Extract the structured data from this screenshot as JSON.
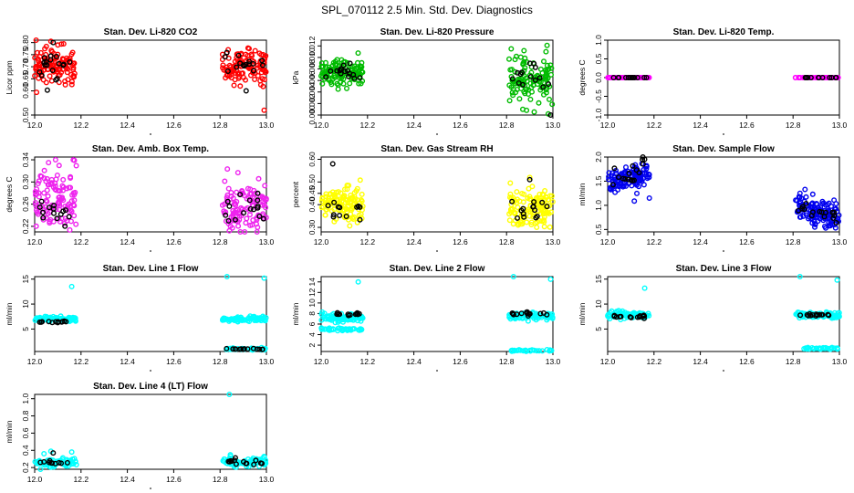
{
  "figure": {
    "title": "SPL_070112  2.5 Min. Std. Dev. Diagnostics"
  },
  "colors": {
    "overlay": "#000000",
    "co2": "#ff0000",
    "pressure": "#00bb00",
    "temp": "#ff00ff",
    "box_temp": "#ee22ee",
    "rh": "#ffff00",
    "flow": "#0000ee",
    "line_flow": "#00ffff"
  },
  "chart_data": [
    {
      "id": "co2",
      "type": "scatter",
      "title": "Stan. Dev. Li-820 CO2",
      "xlabel": "",
      "ylabel": "Licor ppm",
      "xlim": [
        12.0,
        13.0
      ],
      "ylim": [
        0.5,
        0.81
      ],
      "yticks": [
        0.5,
        0.6,
        0.65,
        0.7,
        0.75,
        0.8
      ],
      "ytick_labels": [
        "0.50",
        "0.60",
        "0.65",
        "0.70",
        "0.75",
        "0.80"
      ],
      "xticks": [
        12.0,
        12.2,
        12.4,
        12.6,
        12.8,
        13.0
      ],
      "series": [
        {
          "name": "main",
          "color_key": "co2",
          "segments": [
            {
              "x": [
                12.0,
                12.18
              ],
              "mu": 0.7,
              "sd": 0.04,
              "n": 110
            },
            {
              "x": [
                12.81,
                13.0
              ],
              "mu": 0.7,
              "sd": 0.04,
              "n": 110
            }
          ],
          "extra": [
            [
              12.1,
              0.79
            ],
            [
              12.07,
              0.805
            ],
            [
              12.99,
              0.52
            ]
          ]
        },
        {
          "name": "overlay",
          "color_key": "overlay",
          "segments": [
            {
              "x": [
                12.02,
                12.17
              ],
              "mu": 0.7,
              "sd": 0.035,
              "n": 18
            },
            {
              "x": [
                12.82,
                13.0
              ],
              "mu": 0.7,
              "sd": 0.035,
              "n": 16
            }
          ],
          "extra": [
            [
              12.08,
              0.8
            ]
          ]
        }
      ]
    },
    {
      "id": "pressure",
      "type": "scatter",
      "title": "Stan. Dev. Li-820 Pressure",
      "xlabel": "",
      "ylabel": "kPa",
      "xlim": [
        12.0,
        13.0
      ],
      "ylim": [
        0.0,
        0.013
      ],
      "yticks": [
        0.0,
        0.002,
        0.004,
        0.006,
        0.008,
        0.01,
        0.012
      ],
      "ytick_labels": [
        "0.000",
        "0.002",
        "0.004",
        "0.006",
        "0.008",
        "0.010",
        "0.012"
      ],
      "xticks": [
        12.0,
        12.2,
        12.4,
        12.6,
        12.8,
        13.0
      ],
      "series": [
        {
          "name": "main",
          "color_key": "pressure",
          "segments": [
            {
              "x": [
                12.0,
                12.18
              ],
              "mu": 0.0075,
              "sd": 0.0012,
              "n": 120
            },
            {
              "x": [
                12.81,
                13.0
              ],
              "mu": 0.006,
              "sd": 0.0022,
              "n": 110
            }
          ],
          "extra": [
            [
              12.82,
              0.0115
            ],
            [
              12.98,
              0.0002
            ],
            [
              12.87,
              0.001
            ],
            [
              12.97,
              0.011
            ]
          ]
        },
        {
          "name": "overlay",
          "color_key": "overlay",
          "segments": [
            {
              "x": [
                12.02,
                12.17
              ],
              "mu": 0.0072,
              "sd": 0.0008,
              "n": 16
            },
            {
              "x": [
                12.82,
                12.99
              ],
              "mu": 0.0062,
              "sd": 0.0012,
              "n": 14
            }
          ],
          "extra": [
            [
              12.99,
              0.0
            ]
          ]
        }
      ]
    },
    {
      "id": "li_temp",
      "type": "scatter",
      "title": "Stan. Dev. Li-820 Temp.",
      "xlabel": "",
      "ylabel": "degrees C",
      "xlim": [
        12.0,
        13.0
      ],
      "ylim": [
        -1.0,
        1.0
      ],
      "yticks": [
        -1.0,
        -0.5,
        0.0,
        0.5,
        1.0
      ],
      "ytick_labels": [
        "-1.0",
        "-0.5",
        "0.0",
        "0.5",
        "1.0"
      ],
      "xticks": [
        12.0,
        12.2,
        12.4,
        12.6,
        12.8,
        13.0
      ],
      "series": [
        {
          "name": "main",
          "color_key": "temp",
          "segments": [
            {
              "x": [
                12.0,
                12.18
              ],
              "mu": 0.0,
              "sd": 0.0,
              "n": 60
            },
            {
              "x": [
                12.81,
                13.0
              ],
              "mu": 0.0,
              "sd": 0.0,
              "n": 60
            }
          ],
          "extra": []
        },
        {
          "name": "overlay",
          "color_key": "overlay",
          "segments": [
            {
              "x": [
                12.02,
                12.17
              ],
              "mu": 0.0,
              "sd": 0.0,
              "n": 12
            },
            {
              "x": [
                12.82,
                12.99
              ],
              "mu": 0.0,
              "sd": 0.0,
              "n": 12
            }
          ],
          "extra": []
        }
      ]
    },
    {
      "id": "box_temp",
      "type": "scatter",
      "title": "Stan. Dev. Amb. Box Temp.",
      "xlabel": "",
      "ylabel": "degrees C",
      "xlim": [
        12.0,
        13.0
      ],
      "ylim": [
        0.21,
        0.345
      ],
      "yticks": [
        0.22,
        0.26,
        0.3,
        0.34
      ],
      "ytick_labels": [
        "0.22",
        "0.26",
        "0.30",
        "0.34"
      ],
      "xticks": [
        12.0,
        12.2,
        12.4,
        12.6,
        12.8,
        13.0
      ],
      "series": [
        {
          "name": "main",
          "color_key": "box_temp",
          "segments": [
            {
              "x": [
                12.0,
                12.18
              ],
              "mu": 0.27,
              "sd": 0.027,
              "n": 110
            },
            {
              "x": [
                12.81,
                13.0
              ],
              "mu": 0.255,
              "sd": 0.025,
              "n": 110
            }
          ],
          "extra": [
            [
              12.09,
              0.34
            ],
            [
              12.06,
              0.335
            ],
            [
              12.84,
              0.212
            ]
          ]
        },
        {
          "name": "overlay",
          "color_key": "overlay",
          "segments": [
            {
              "x": [
                12.02,
                12.17
              ],
              "mu": 0.245,
              "sd": 0.012,
              "n": 14
            },
            {
              "x": [
                12.82,
                12.99
              ],
              "mu": 0.25,
              "sd": 0.018,
              "n": 16
            }
          ],
          "extra": []
        }
      ]
    },
    {
      "id": "rh",
      "type": "scatter",
      "title": "Stan. Dev. Gas Stream RH",
      "xlabel": "",
      "ylabel": "percent",
      "xlim": [
        12.0,
        13.0
      ],
      "ylim": [
        0.28,
        0.61
      ],
      "yticks": [
        0.3,
        0.4,
        0.45,
        0.5,
        0.6
      ],
      "ytick_labels": [
        "0.30",
        "0.40",
        "0.45",
        "0.50",
        "0.60"
      ],
      "xticks": [
        12.0,
        12.2,
        12.4,
        12.6,
        12.8,
        13.0
      ],
      "series": [
        {
          "name": "main",
          "color_key": "rh",
          "segments": [
            {
              "x": [
                12.0,
                12.18
              ],
              "mu": 0.4,
              "sd": 0.035,
              "n": 120
            },
            {
              "x": [
                12.81,
                13.0
              ],
              "mu": 0.38,
              "sd": 0.04,
              "n": 120
            }
          ],
          "extra": [
            [
              12.85,
              0.31
            ],
            [
              12.93,
              0.3
            ],
            [
              12.9,
              0.52
            ]
          ]
        },
        {
          "name": "overlay",
          "color_key": "overlay",
          "segments": [
            {
              "x": [
                12.02,
                12.17
              ],
              "mu": 0.38,
              "sd": 0.02,
              "n": 12
            },
            {
              "x": [
                12.82,
                12.99
              ],
              "mu": 0.4,
              "sd": 0.04,
              "n": 14
            }
          ],
          "extra": [
            [
              12.05,
              0.58
            ],
            [
              12.9,
              0.51
            ]
          ]
        }
      ]
    },
    {
      "id": "sample_flow",
      "type": "scatter",
      "title": "Stan. Dev. Sample Flow",
      "xlabel": "",
      "ylabel": "ml/min",
      "xlim": [
        12.0,
        13.0
      ],
      "ylim": [
        0.45,
        2.0
      ],
      "yticks": [
        0.5,
        1.0,
        1.5,
        2.0
      ],
      "ytick_labels": [
        "0.5",
        "1.0",
        "1.5",
        "2.0"
      ],
      "xticks": [
        12.0,
        12.2,
        12.4,
        12.6,
        12.8,
        13.0
      ],
      "series": [
        {
          "name": "main",
          "color_key": "flow",
          "segments": [
            {
              "x": [
                12.0,
                12.18
              ],
              "mu": 1.55,
              "sd": 0.11,
              "n": 130,
              "slope": 0.9
            },
            {
              "x": [
                12.81,
                13.0
              ],
              "mu": 0.85,
              "sd": 0.12,
              "n": 130,
              "slope": -1.3
            }
          ],
          "extra": [
            [
              12.18,
              1.15
            ],
            [
              12.83,
              1.25
            ]
          ]
        },
        {
          "name": "overlay",
          "color_key": "overlay",
          "segments": [
            {
              "x": [
                12.02,
                12.17
              ],
              "mu": 1.65,
              "sd": 0.12,
              "n": 16,
              "slope": 1.2
            },
            {
              "x": [
                12.82,
                12.99
              ],
              "mu": 0.85,
              "sd": 0.08,
              "n": 16,
              "slope": -1.2
            }
          ],
          "extra": [
            [
              12.15,
              1.95
            ]
          ]
        }
      ]
    },
    {
      "id": "line1",
      "type": "scatter",
      "title": "Stan. Dev. Line 1 Flow",
      "xlabel": "",
      "ylabel": "ml/min",
      "xlim": [
        12.0,
        13.0
      ],
      "ylim": [
        0.5,
        15.5
      ],
      "yticks": [
        5,
        10,
        15
      ],
      "ytick_labels": [
        "5",
        "10",
        "15"
      ],
      "xticks": [
        12.0,
        12.2,
        12.4,
        12.6,
        12.8,
        13.0
      ],
      "series": [
        {
          "name": "main",
          "color_key": "line_flow",
          "segments": [
            {
              "x": [
                12.0,
                12.18
              ],
              "mu": 7.0,
              "sd": 0.25,
              "n": 90
            },
            {
              "x": [
                12.81,
                13.0
              ],
              "mu": 7.0,
              "sd": 0.25,
              "n": 90
            },
            {
              "x": [
                12.82,
                13.0
              ],
              "mu": 1.0,
              "sd": 0.1,
              "n": 30
            }
          ],
          "extra": [
            [
              12.16,
              13.5
            ],
            [
              12.83,
              15.5
            ],
            [
              12.99,
              15.2
            ]
          ]
        },
        {
          "name": "overlay",
          "color_key": "overlay",
          "segments": [
            {
              "x": [
                12.02,
                12.17
              ],
              "mu": 6.4,
              "sd": 0.1,
              "n": 12
            },
            {
              "x": [
                12.82,
                12.99
              ],
              "mu": 1.0,
              "sd": 0.05,
              "n": 14
            }
          ],
          "extra": []
        }
      ]
    },
    {
      "id": "line2",
      "type": "scatter",
      "title": "Stan. Dev. Line 2 Flow",
      "xlabel": "",
      "ylabel": "ml/min",
      "xlim": [
        12.0,
        13.0
      ],
      "ylim": [
        0.8,
        15.0
      ],
      "yticks": [
        2,
        4,
        6,
        8,
        10,
        12,
        14
      ],
      "ytick_labels": [
        "2",
        "4",
        "6",
        "8",
        "10",
        "12",
        "14"
      ],
      "xticks": [
        12.0,
        12.2,
        12.4,
        12.6,
        12.8,
        13.0
      ],
      "series": [
        {
          "name": "main",
          "color_key": "line_flow",
          "segments": [
            {
              "x": [
                12.0,
                12.18
              ],
              "mu": 7.2,
              "sd": 0.4,
              "n": 80
            },
            {
              "x": [
                12.0,
                12.18
              ],
              "mu": 5.0,
              "sd": 0.15,
              "n": 40
            },
            {
              "x": [
                12.81,
                13.0
              ],
              "mu": 7.5,
              "sd": 0.35,
              "n": 80
            },
            {
              "x": [
                12.82,
                13.0
              ],
              "mu": 1.0,
              "sd": 0.1,
              "n": 30
            }
          ],
          "extra": [
            [
              12.16,
              14.0
            ],
            [
              12.83,
              15.0
            ],
            [
              12.99,
              14.5
            ]
          ]
        },
        {
          "name": "overlay",
          "color_key": "overlay",
          "segments": [
            {
              "x": [
                12.02,
                12.17
              ],
              "mu": 7.9,
              "sd": 0.15,
              "n": 12
            },
            {
              "x": [
                12.82,
                12.99
              ],
              "mu": 8.1,
              "sd": 0.2,
              "n": 14
            }
          ],
          "extra": []
        }
      ]
    },
    {
      "id": "line3",
      "type": "scatter",
      "title": "Stan. Dev. Line 3 Flow",
      "xlabel": "",
      "ylabel": "ml/min",
      "xlim": [
        12.0,
        13.0
      ],
      "ylim": [
        0.5,
        15.5
      ],
      "yticks": [
        5,
        10,
        15
      ],
      "ytick_labels": [
        "5",
        "10",
        "15"
      ],
      "xticks": [
        12.0,
        12.2,
        12.4,
        12.6,
        12.8,
        13.0
      ],
      "series": [
        {
          "name": "main",
          "color_key": "line_flow",
          "segments": [
            {
              "x": [
                12.0,
                12.18
              ],
              "mu": 7.8,
              "sd": 0.3,
              "n": 90
            },
            {
              "x": [
                12.81,
                13.0
              ],
              "mu": 7.8,
              "sd": 0.3,
              "n": 80
            },
            {
              "x": [
                12.84,
                13.0
              ],
              "mu": 1.1,
              "sd": 0.1,
              "n": 30
            }
          ],
          "extra": [
            [
              12.16,
              13.2
            ],
            [
              12.83,
              15.5
            ],
            [
              12.99,
              14.8
            ]
          ]
        },
        {
          "name": "overlay",
          "color_key": "overlay",
          "segments": [
            {
              "x": [
                12.02,
                12.17
              ],
              "mu": 7.5,
              "sd": 0.15,
              "n": 14
            },
            {
              "x": [
                12.82,
                12.99
              ],
              "mu": 7.8,
              "sd": 0.1,
              "n": 14
            }
          ],
          "extra": []
        }
      ]
    },
    {
      "id": "line4",
      "type": "scatter",
      "title": "Stan. Dev. Line 4 (LT) Flow",
      "xlabel": "",
      "ylabel": "ml/min",
      "xlim": [
        12.0,
        13.0
      ],
      "ylim": [
        0.18,
        1.05
      ],
      "yticks": [
        0.2,
        0.4,
        0.6,
        0.8,
        1.0
      ],
      "ytick_labels": [
        "0.2",
        "0.4",
        "0.6",
        "0.8",
        "1.0"
      ],
      "xticks": [
        12.0,
        12.2,
        12.4,
        12.6,
        12.8,
        13.0
      ],
      "series": [
        {
          "name": "main",
          "color_key": "line_flow",
          "segments": [
            {
              "x": [
                12.0,
                12.18
              ],
              "mu": 0.255,
              "sd": 0.025,
              "n": 70
            },
            {
              "x": [
                12.81,
                13.0
              ],
              "mu": 0.26,
              "sd": 0.025,
              "n": 80
            }
          ],
          "extra": [
            [
              12.07,
              0.39
            ],
            [
              12.04,
              0.36
            ],
            [
              12.16,
              0.38
            ],
            [
              12.84,
              1.05
            ]
          ]
        },
        {
          "name": "overlay",
          "color_key": "overlay",
          "segments": [
            {
              "x": [
                12.02,
                12.17
              ],
              "mu": 0.26,
              "sd": 0.012,
              "n": 10
            },
            {
              "x": [
                12.82,
                12.99
              ],
              "mu": 0.27,
              "sd": 0.02,
              "n": 14
            }
          ],
          "extra": [
            [
              12.08,
              0.37
            ]
          ]
        }
      ]
    }
  ]
}
